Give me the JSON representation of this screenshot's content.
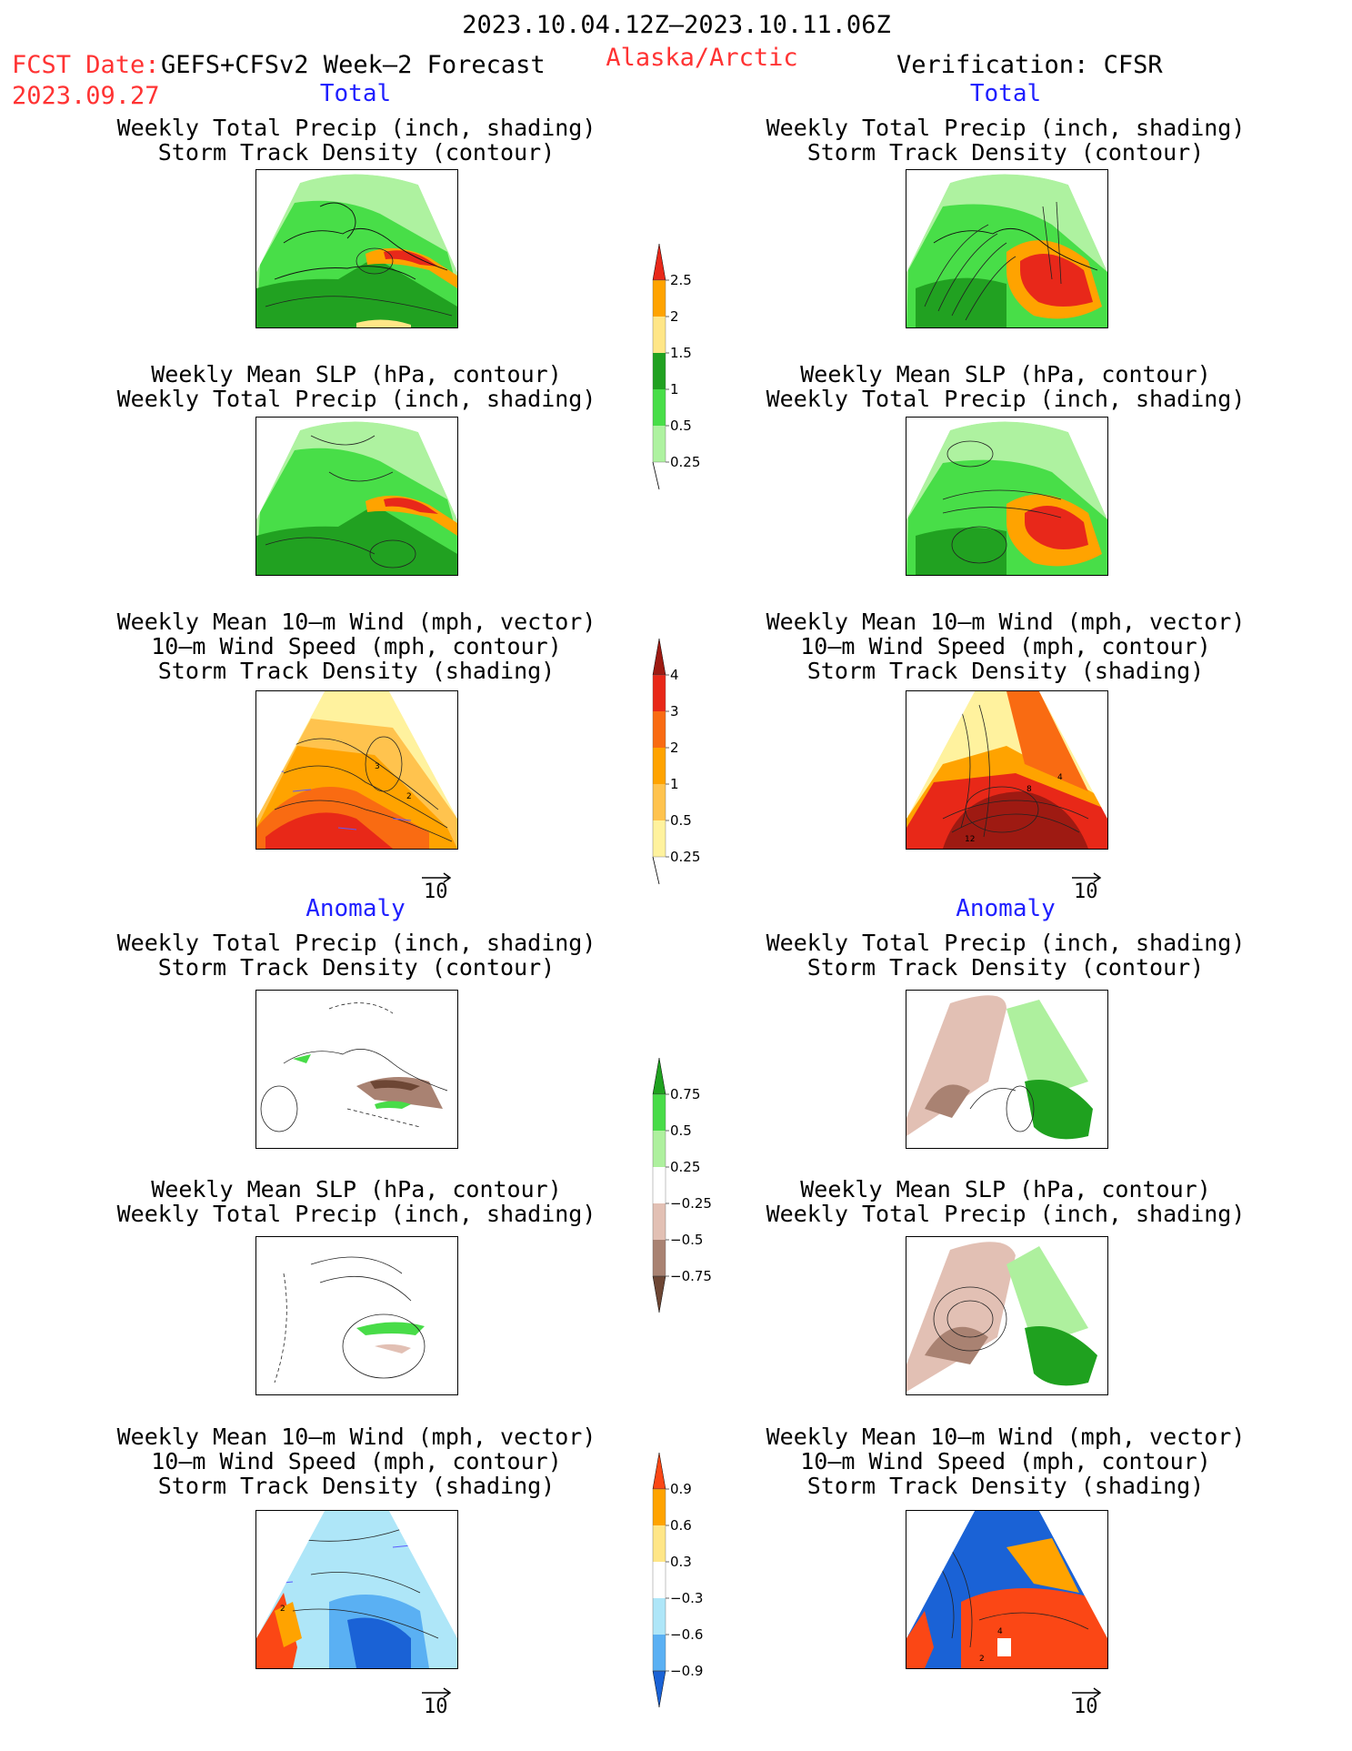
{
  "header": {
    "period": "2023.10.04.12Z–2023.10.11.06Z",
    "fcst_label": "FCST Date:",
    "fcst_model": "GEFS+CFSv2 Week–2 Forecast",
    "fcst_date": "2023.09.27",
    "region": "Alaska/Arctic",
    "verification": "Verification: CFSR"
  },
  "sections": {
    "total_left": "Total",
    "total_right": "Total",
    "anomaly_left": "Anomaly",
    "anomaly_right": "Anomaly"
  },
  "titles": {
    "precip_storm": [
      "Weekly Total Precip (inch, shading)",
      "Storm Track Density (contour)"
    ],
    "slp_precip": [
      "Weekly Mean SLP (hPa, contour)",
      "Weekly Total Precip (inch, shading)"
    ],
    "wind_storm": [
      "Weekly Mean 10–m Wind (mph, vector)",
      "10–m Wind Speed (mph, contour)",
      "Storm Track Density (shading)"
    ]
  },
  "colorbars": {
    "precip_total": {
      "labels": [
        "2.5",
        "2",
        "1.5",
        "1",
        "0.5",
        "0.25"
      ],
      "colors": [
        "#e8281a",
        "#ffa300",
        "#ffe687",
        "#21a121",
        "#48de48",
        "#aef2a0"
      ]
    },
    "storm_total": {
      "labels": [
        "4",
        "3",
        "2",
        "1",
        "0.5",
        "0.25"
      ],
      "colors": [
        "#9e1a12",
        "#e82818",
        "#f96b12",
        "#ffa300",
        "#ffc34e",
        "#fff29e"
      ]
    },
    "precip_anom": {
      "labels": [
        "0.75",
        "0.5",
        "0.25",
        "−0.25",
        "−0.5",
        "−0.75"
      ],
      "colors": [
        "#1fa11f",
        "#48dc48",
        "#aef09e",
        "#ffffff",
        "#e2c0b4",
        "#a98272",
        "#6d4634"
      ]
    },
    "storm_anom": {
      "labels": [
        "0.9",
        "0.6",
        "0.3",
        "−0.3",
        "−0.6",
        "−0.9"
      ],
      "colors": [
        "#fb4715",
        "#ffa300",
        "#ffe687",
        "#ffffff",
        "#aee6f8",
        "#5ab0f3",
        "#1a62d6"
      ]
    }
  },
  "wind_reference": [
    "10",
    "10",
    "10",
    "10"
  ],
  "contour_labels": {
    "fcst_total_wind": [
      "3",
      "2"
    ],
    "obs_total_wind": [
      "4",
      "8",
      "12"
    ],
    "fcst_anom_wind": [
      "2"
    ],
    "obs_anom_wind": [
      "4",
      "2"
    ]
  }
}
